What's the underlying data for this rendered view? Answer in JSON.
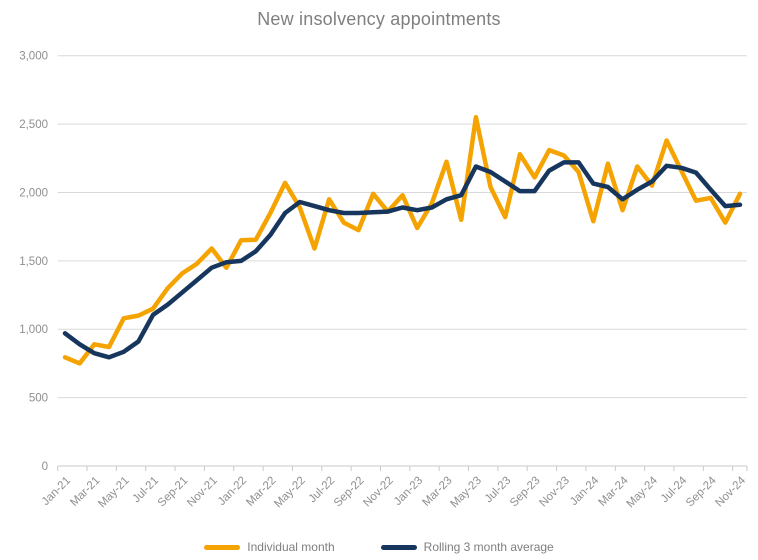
{
  "chart_data": {
    "type": "line",
    "title": "New insolvency appointments",
    "x_categories": [
      "Jan-21",
      "Feb-21",
      "Mar-21",
      "Apr-21",
      "May-21",
      "Jun-21",
      "Jul-21",
      "Aug-21",
      "Sep-21",
      "Oct-21",
      "Nov-21",
      "Dec-21",
      "Jan-22",
      "Feb-22",
      "Mar-22",
      "Apr-22",
      "May-22",
      "Jun-22",
      "Jul-22",
      "Aug-22",
      "Sep-22",
      "Oct-22",
      "Nov-22",
      "Dec-22",
      "Jan-23",
      "Feb-23",
      "Mar-23",
      "Apr-23",
      "May-23",
      "Jun-23",
      "Jul-23",
      "Aug-23",
      "Sep-23",
      "Oct-23",
      "Nov-23",
      "Dec-23",
      "Jan-24",
      "Feb-24",
      "Mar-24",
      "Apr-24",
      "May-24",
      "Jun-24",
      "Jul-24",
      "Aug-24",
      "Sep-24",
      "Oct-24",
      "Nov-24"
    ],
    "x_axis_tick_labels": [
      "Jan-21",
      "Mar-21",
      "May-21",
      "Jul-21",
      "Sep-21",
      "Nov-21",
      "Jan-22",
      "Mar-22",
      "May-22",
      "Jul-22",
      "Sep-22",
      "Nov-22",
      "Jan-23",
      "Mar-23",
      "May-23",
      "Jul-23",
      "Sep-23",
      "Nov-23",
      "Jan-24",
      "Mar-24",
      "May-24",
      "Jul-24",
      "Sep-24",
      "Nov-24"
    ],
    "y_axis_tick_labels": [
      "0",
      "500",
      "1,000",
      "1,500",
      "2,000",
      "2,500",
      "3,000"
    ],
    "y_ticks": [
      0,
      500,
      1000,
      1500,
      2000,
      2500,
      3000
    ],
    "ylim": [
      0,
      3000
    ],
    "grid": "horizontal",
    "legend_position": "bottom",
    "series": [
      {
        "name": "Individual month",
        "color": "#F5A300",
        "values": [
          795,
          750,
          890,
          870,
          1080,
          1100,
          1150,
          1300,
          1410,
          1480,
          1590,
          1450,
          1650,
          1655,
          1850,
          2070,
          1890,
          1590,
          1950,
          1780,
          1725,
          1990,
          1860,
          1980,
          1740,
          1920,
          2225,
          1800,
          2550,
          2040,
          1820,
          2280,
          2110,
          2310,
          2270,
          2150,
          1790,
          2210,
          1870,
          2190,
          2050,
          2380,
          2160,
          1940,
          1960,
          1780,
          1990
        ]
      },
      {
        "name": "Rolling 3 month average",
        "color": "#17365D",
        "values": [
          970,
          890,
          825,
          795,
          835,
          910,
          1105,
          1180,
          1270,
          1360,
          1450,
          1490,
          1500,
          1570,
          1690,
          1850,
          1930,
          1900,
          1870,
          1850,
          1850,
          1855,
          1860,
          1890,
          1870,
          1890,
          1950,
          1980,
          2190,
          2150,
          2080,
          2010,
          2010,
          2160,
          2220,
          2220,
          2065,
          2040,
          1950,
          2020,
          2080,
          2195,
          2180,
          2145,
          2020,
          1900,
          1910
        ]
      }
    ]
  },
  "colors": {
    "title_text": "#7f7f7f",
    "axis_label_text": "#8f8f8f",
    "gridline": "#d9d9d9",
    "axis_line": "#c9c9c9",
    "background": "#ffffff",
    "legend_text": "#7f7f7f"
  }
}
